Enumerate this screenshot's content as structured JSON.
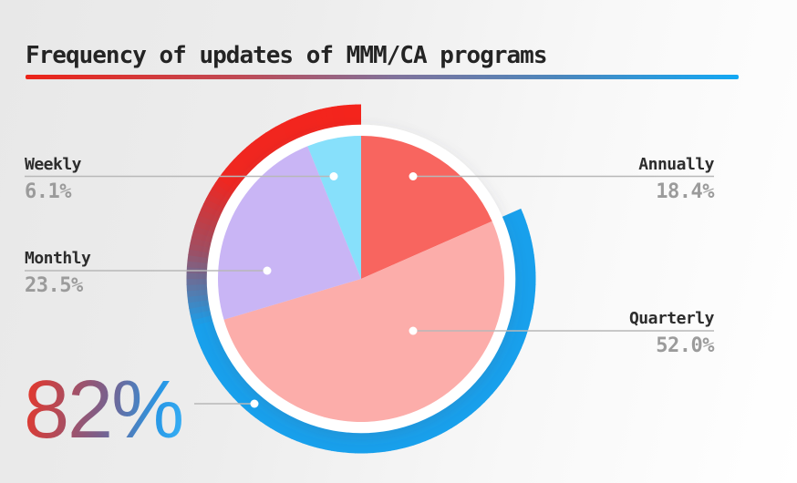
{
  "header": {
    "title": "Frequency of updates of MMM/CA programs"
  },
  "callouts": {
    "weekly": {
      "label": "Weekly",
      "value": "6.1%"
    },
    "monthly": {
      "label": "Monthly",
      "value": "23.5%"
    },
    "annually": {
      "label": "Annually",
      "value": "18.4%"
    },
    "quarterly": {
      "label": "Quarterly",
      "value": "52.0%"
    }
  },
  "highlight": {
    "text": "82%"
  },
  "colors": {
    "title_text": "#242424",
    "label_text": "#2d2d2d",
    "value_text": "#9b9b9b",
    "background_left": "#e8e8e8",
    "background_right": "#ffffff",
    "leader_line": "#b8b8b8",
    "ring_white": "#ffffff",
    "accent_red": "#f4241c",
    "accent_blue": "#18a4f2"
  },
  "chart_data": {
    "type": "pie",
    "title": "Frequency of updates of MMM/CA programs",
    "categories": [
      "Annually",
      "Quarterly",
      "Monthly",
      "Weekly"
    ],
    "values": [
      18.4,
      52.0,
      23.5,
      6.1
    ],
    "slices": [
      {
        "label": "Annually",
        "value": 18.4,
        "color": "#f8655f"
      },
      {
        "label": "Quarterly",
        "value": 52.0,
        "color": "#fcadaa"
      },
      {
        "label": "Monthly",
        "value": 23.5,
        "color": "#c9b5f5"
      },
      {
        "label": "Weekly",
        "value": 6.1,
        "color": "#87e0fb"
      }
    ],
    "start_angle_deg": 0,
    "direction": "clockwise",
    "legend_position": "callouts",
    "outer_ring": {
      "coverage_pct": 82,
      "label": "82%",
      "gap_over": "Annually",
      "gradient_stops": [
        {
          "deg": 66,
          "color": "#18a0ec"
        },
        {
          "deg": 254,
          "color": "#18a0ec"
        },
        {
          "deg": 280,
          "color": "#a04e62"
        },
        {
          "deg": 306,
          "color": "#ef2721"
        },
        {
          "deg": 360,
          "color": "#f4241c"
        }
      ]
    }
  }
}
